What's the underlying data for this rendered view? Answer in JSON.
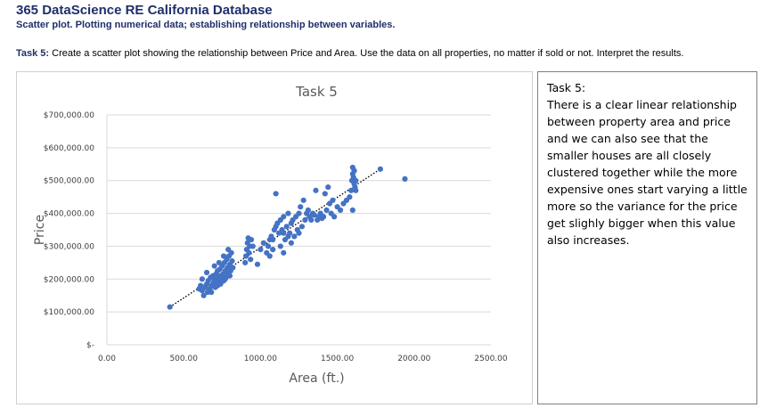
{
  "header": {
    "title": "365 DataScience RE California Database",
    "subtitle": "Scatter plot. Plotting numerical data; establishing relationship between variables."
  },
  "task": {
    "label": "Task 5:",
    "text": "Create a scatter plot showing the relationship between Price and Area. Use the data on all properties, no matter if sold or not. Interpret the results."
  },
  "note": {
    "heading": "Task 5:",
    "body": "There is a clear linear relationship between property area and price and we can also see that the smaller houses are all closely clustered together while the more expensive ones start varying a little more so the variance for the price get slighly bigger when this value also increases."
  },
  "chart_data": {
    "type": "scatter",
    "title": "Task 5",
    "xlabel": "Area (ft.)",
    "ylabel": "Price",
    "xlim": [
      0,
      2500
    ],
    "ylim": [
      0,
      700000
    ],
    "xticks": [
      "0.00",
      "500.00",
      "1000.00",
      "1500.00",
      "2000.00",
      "2500.00"
    ],
    "yticks": [
      "$-",
      "$100,000.00",
      "$200,000.00",
      "$300,000.00",
      "$400,000.00",
      "$500,000.00",
      "$600,000.00",
      "$700,000.00"
    ],
    "grid": "horizontal",
    "legend": "none",
    "trendline": {
      "style": "dotted linear",
      "x": [
        410,
        1780
      ],
      "y": [
        115000,
        535000
      ]
    },
    "colors": {
      "points": "#4472c4",
      "trendline": "#000000",
      "grid": "#d9d9d9"
    },
    "points": [
      [
        410,
        115000
      ],
      [
        600,
        170000
      ],
      [
        610,
        180000
      ],
      [
        620,
        165000
      ],
      [
        630,
        150000
      ],
      [
        640,
        175000
      ],
      [
        650,
        185000
      ],
      [
        655,
        160000
      ],
      [
        660,
        195000
      ],
      [
        670,
        170000
      ],
      [
        675,
        205000
      ],
      [
        680,
        180000
      ],
      [
        690,
        210000
      ],
      [
        695,
        190000
      ],
      [
        700,
        200000
      ],
      [
        705,
        175000
      ],
      [
        710,
        215000
      ],
      [
        715,
        195000
      ],
      [
        720,
        225000
      ],
      [
        725,
        205000
      ],
      [
        730,
        190000
      ],
      [
        735,
        230000
      ],
      [
        740,
        210000
      ],
      [
        745,
        200000
      ],
      [
        750,
        240000
      ],
      [
        755,
        215000
      ],
      [
        760,
        195000
      ],
      [
        765,
        250000
      ],
      [
        770,
        225000
      ],
      [
        775,
        205000
      ],
      [
        780,
        260000
      ],
      [
        785,
        235000
      ],
      [
        790,
        215000
      ],
      [
        795,
        270000
      ],
      [
        800,
        245000
      ],
      [
        805,
        225000
      ],
      [
        810,
        280000
      ],
      [
        815,
        255000
      ],
      [
        820,
        235000
      ],
      [
        700,
        240000
      ],
      [
        650,
        220000
      ],
      [
        730,
        250000
      ],
      [
        760,
        270000
      ],
      [
        790,
        290000
      ],
      [
        720,
        180000
      ],
      [
        680,
        160000
      ],
      [
        740,
        185000
      ],
      [
        770,
        200000
      ],
      [
        800,
        210000
      ],
      [
        620,
        200000
      ],
      [
        900,
        250000
      ],
      [
        905,
        270000
      ],
      [
        910,
        290000
      ],
      [
        915,
        310000
      ],
      [
        920,
        325000
      ],
      [
        925,
        280000
      ],
      [
        930,
        300000
      ],
      [
        935,
        260000
      ],
      [
        940,
        320000
      ],
      [
        950,
        300000
      ],
      [
        980,
        245000
      ],
      [
        1000,
        290000
      ],
      [
        1020,
        310000
      ],
      [
        1040,
        280000
      ],
      [
        1050,
        300000
      ],
      [
        1060,
        320000
      ],
      [
        1070,
        330000
      ],
      [
        1080,
        290000
      ],
      [
        1090,
        350000
      ],
      [
        1100,
        360000
      ],
      [
        1110,
        370000
      ],
      [
        1120,
        340000
      ],
      [
        1130,
        380000
      ],
      [
        1140,
        350000
      ],
      [
        1150,
        390000
      ],
      [
        1160,
        320000
      ],
      [
        1170,
        360000
      ],
      [
        1180,
        400000
      ],
      [
        1190,
        340000
      ],
      [
        1200,
        370000
      ],
      [
        1210,
        380000
      ],
      [
        1220,
        330000
      ],
      [
        1230,
        390000
      ],
      [
        1240,
        350000
      ],
      [
        1250,
        400000
      ],
      [
        1260,
        420000
      ],
      [
        1270,
        360000
      ],
      [
        1280,
        440000
      ],
      [
        1290,
        380000
      ],
      [
        1300,
        400000
      ],
      [
        1310,
        410000
      ],
      [
        1320,
        390000
      ],
      [
        1330,
        380000
      ],
      [
        1340,
        400000
      ],
      [
        1350,
        395000
      ],
      [
        1360,
        470000
      ],
      [
        1370,
        380000
      ],
      [
        1380,
        390000
      ],
      [
        1390,
        400000
      ],
      [
        1400,
        385000
      ],
      [
        1410,
        390000
      ],
      [
        1420,
        460000
      ],
      [
        1430,
        410000
      ],
      [
        1440,
        480000
      ],
      [
        1450,
        430000
      ],
      [
        1460,
        400000
      ],
      [
        1470,
        440000
      ],
      [
        1480,
        390000
      ],
      [
        1500,
        420000
      ],
      [
        1520,
        410000
      ],
      [
        1540,
        430000
      ],
      [
        1560,
        440000
      ],
      [
        1580,
        450000
      ],
      [
        1590,
        470000
      ],
      [
        1595,
        500000
      ],
      [
        1600,
        540000
      ],
      [
        1600,
        520000
      ],
      [
        1605,
        510000
      ],
      [
        1610,
        530000
      ],
      [
        1610,
        490000
      ],
      [
        1615,
        480000
      ],
      [
        1620,
        470000
      ],
      [
        1600,
        410000
      ],
      [
        1620,
        500000
      ],
      [
        1780,
        535000
      ],
      [
        1940,
        505000
      ],
      [
        1100,
        460000
      ],
      [
        1150,
        280000
      ],
      [
        1130,
        300000
      ],
      [
        1060,
        270000
      ],
      [
        1080,
        320000
      ],
      [
        1200,
        310000
      ],
      [
        1250,
        340000
      ],
      [
        1150,
        340000
      ],
      [
        1180,
        330000
      ]
    ]
  }
}
